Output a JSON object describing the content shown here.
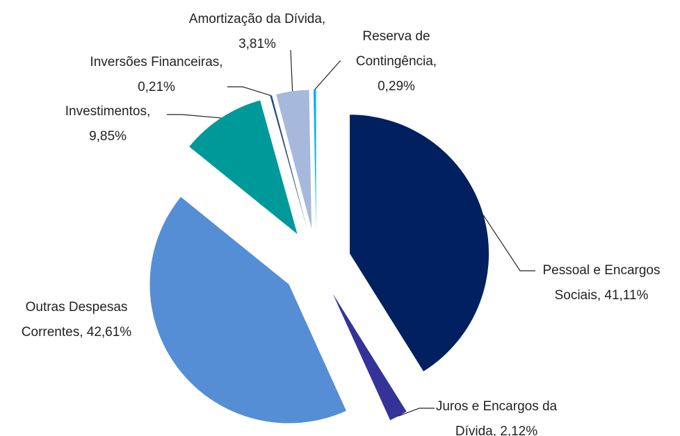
{
  "chart_data": {
    "type": "pie",
    "values": [
      41.11,
      2.12,
      42.61,
      9.85,
      0.21,
      3.81,
      0.29
    ],
    "value_labels": [
      "Pessoal e Encargos Sociais, 41,11%",
      "Juros e Encargos da Dívida, 2,12%",
      "Outras Despesas Correntes, 42,61%",
      "Investimentos, 9,85%",
      "Inversões Financeiras, 0,21%",
      "Amortização da Dívida, 3,81%",
      "Reserva de Contingência, 0,29%"
    ],
    "colors": [
      "#002060",
      "#333399",
      "#558ed5",
      "#009999",
      "#1f497d",
      "#a6b9dc",
      "#00b0f0"
    ]
  }
}
